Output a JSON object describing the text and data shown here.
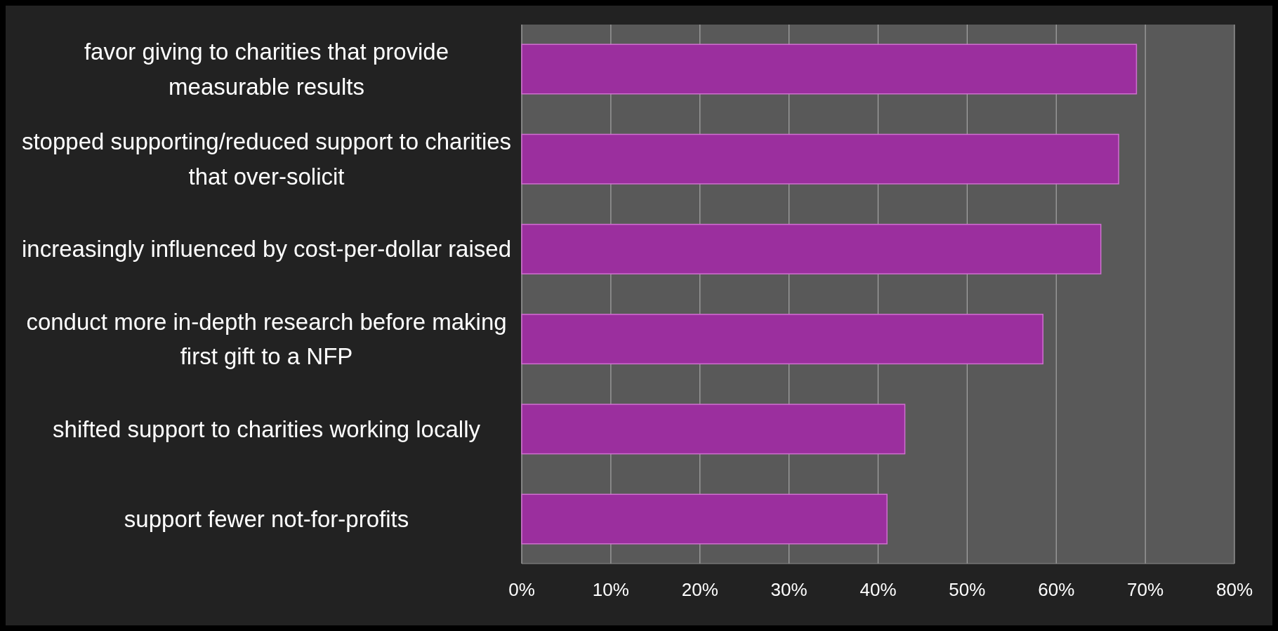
{
  "chart_data": {
    "type": "bar",
    "orientation": "horizontal",
    "categories": [
      "favor giving to charities that provide measurable results",
      "stopped supporting/reduced support to charities that over-solicit",
      "increasingly influenced by cost-per-dollar raised",
      "conduct more in-depth research before making first gift to a NFP",
      "shifted support to charities working locally",
      "support fewer not-for-profits"
    ],
    "values": [
      0.69,
      0.67,
      0.65,
      0.585,
      0.43,
      0.41
    ],
    "color": "#9b2f9e",
    "xlim": [
      0,
      0.8
    ],
    "xticks": [
      {
        "value": 0,
        "label": "0%"
      },
      {
        "value": 0.1,
        "label": "10%"
      },
      {
        "value": 0.2,
        "label": "20%"
      },
      {
        "value": 0.3,
        "label": "30%"
      },
      {
        "value": 0.4,
        "label": "40%"
      },
      {
        "value": 0.5,
        "label": "50%"
      },
      {
        "value": 0.6,
        "label": "60%"
      },
      {
        "value": 0.7,
        "label": "70%"
      },
      {
        "value": 0.8,
        "label": "80%"
      }
    ],
    "grid": "x"
  }
}
